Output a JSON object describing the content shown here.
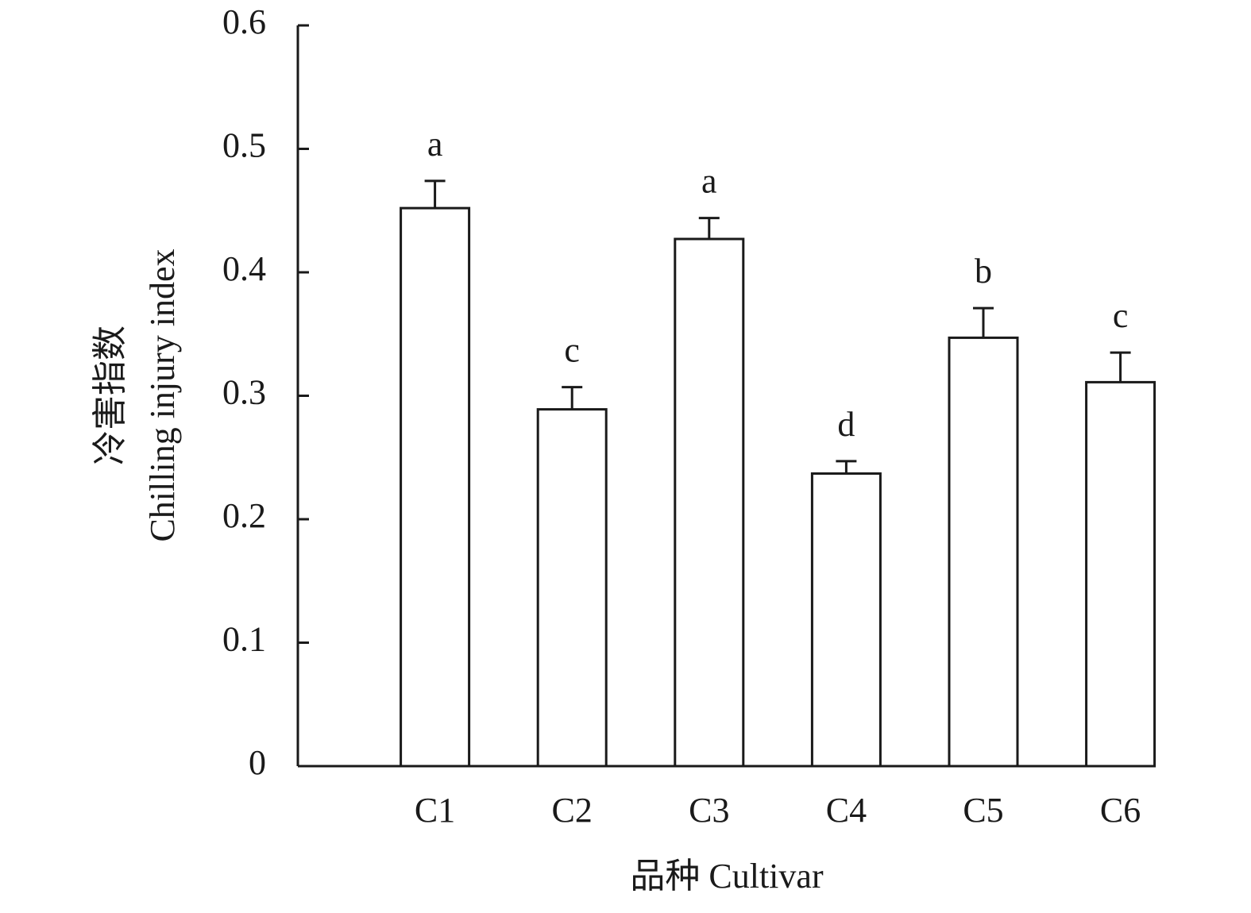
{
  "chart_data": {
    "type": "bar",
    "x_label": "品种 Cultivar",
    "y_label": [
      "冷害指数",
      "Chilling injury index"
    ],
    "categories": [
      "C1",
      "C2",
      "C3",
      "C4",
      "C5",
      "C6"
    ],
    "values": [
      0.452,
      0.289,
      0.427,
      0.237,
      0.347,
      0.311
    ],
    "errors": [
      0.022,
      0.018,
      0.017,
      0.01,
      0.024,
      0.024
    ],
    "annotations": [
      "a",
      "c",
      "a",
      "d",
      "b",
      "c"
    ],
    "color": "#ffffff",
    "edge_color": "#1a1a1a",
    "ylim": [
      0,
      0.6
    ],
    "yticks": [
      0,
      0.1,
      0.2,
      0.3,
      0.4,
      0.5,
      0.6
    ],
    "grid": false
  }
}
